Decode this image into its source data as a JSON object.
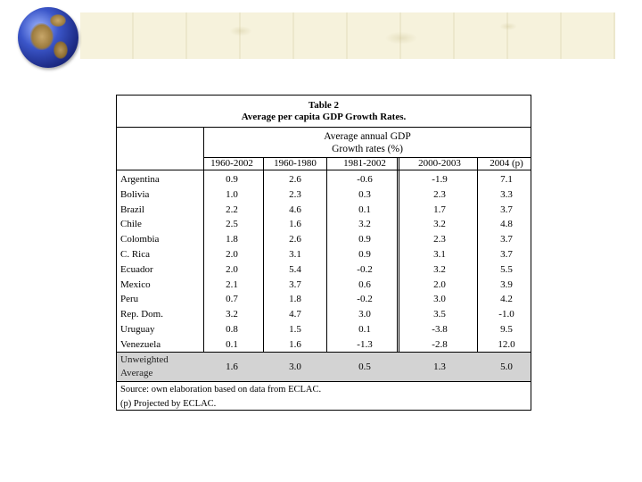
{
  "table": {
    "title": "Table 2",
    "subtitle": "Average per capita GDP Growth Rates.",
    "group_header_line1": "Average annual GDP",
    "group_header_line2": "Growth rates (%)",
    "columns": [
      "1960-2002",
      "1960-1980",
      "1981-2002",
      "2000-2003",
      "2004 (p)"
    ],
    "rows": [
      {
        "name": "Argentina",
        "values": [
          "0.9",
          "2.6",
          "-0.6",
          "-1.9",
          "7.1"
        ]
      },
      {
        "name": "Bolivia",
        "values": [
          "1.0",
          "2.3",
          "0.3",
          "2.3",
          "3.3"
        ]
      },
      {
        "name": "Brazil",
        "values": [
          "2.2",
          "4.6",
          "0.1",
          "1.7",
          "3.7"
        ]
      },
      {
        "name": "Chile",
        "values": [
          "2.5",
          "1.6",
          "3.2",
          "3.2",
          "4.8"
        ]
      },
      {
        "name": "Colombia",
        "values": [
          "1.8",
          "2.6",
          "0.9",
          "2.3",
          "3.7"
        ]
      },
      {
        "name": "C. Rica",
        "values": [
          "2.0",
          "3.1",
          "0.9",
          "3.1",
          "3.7"
        ]
      },
      {
        "name": "Ecuador",
        "values": [
          "2.0",
          "5.4",
          "-0.2",
          "3.2",
          "5.5"
        ]
      },
      {
        "name": "Mexico",
        "values": [
          "2.1",
          "3.7",
          "0.6",
          "2.0",
          "3.9"
        ]
      },
      {
        "name": "Peru",
        "values": [
          "0.7",
          "1.8",
          "-0.2",
          "3.0",
          "4.2"
        ]
      },
      {
        "name": "Rep. Dom.",
        "values": [
          "3.2",
          "4.7",
          "3.0",
          "3.5",
          "-1.0"
        ]
      },
      {
        "name": "Uruguay",
        "values": [
          "0.8",
          "1.5",
          "0.1",
          "-3.8",
          "9.5"
        ]
      },
      {
        "name": "Venezuela",
        "values": [
          "0.1",
          "1.6",
          "-1.3",
          "-2.8",
          "12.0"
        ]
      }
    ],
    "average": {
      "name_line1": "Unweighted",
      "name_line2": "Average",
      "values": [
        "1.6",
        "3.0",
        "0.5",
        "1.3",
        "5.0"
      ]
    },
    "source": "Source: own elaboration based on data from ECLAC.",
    "note": "(p) Projected by ECLAC."
  },
  "colors": {
    "average_row_bg": "#d3d3d3",
    "banner_bg": "#f6f2dc"
  },
  "icons": [
    "globe-icon"
  ]
}
